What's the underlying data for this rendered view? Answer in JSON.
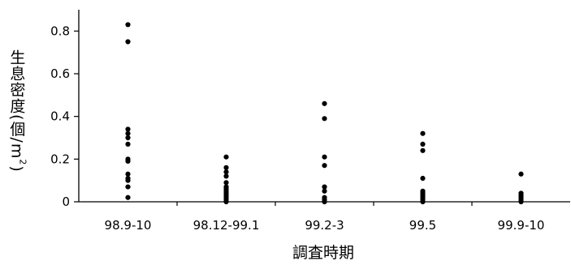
{
  "chart_data": {
    "type": "scatter",
    "xlabel": "調査時期",
    "ylabel": {
      "prefix": "生息密度(個/m",
      "superscript": "2",
      "suffix": ")"
    },
    "ylim": [
      0,
      0.9
    ],
    "yticks": [
      {
        "value": 0,
        "label": "0"
      },
      {
        "value": 0.2,
        "label": "0.2"
      },
      {
        "value": 0.4,
        "label": "0.4"
      },
      {
        "value": 0.6,
        "label": "0.6"
      },
      {
        "value": 0.8,
        "label": "0.8"
      }
    ],
    "categories": [
      "98.9-10",
      "98.12-99.1",
      "99.2-3",
      "99.5",
      "99.9-10"
    ],
    "grid": false,
    "series": [
      {
        "values": [
          [
            0.83,
            0.75,
            0.34,
            0.32,
            0.3,
            0.27,
            0.2,
            0.19,
            0.13,
            0.11,
            0.1,
            0.07,
            0.02
          ],
          [
            0.21,
            0.16,
            0.14,
            0.12,
            0.09,
            0.07,
            0.06,
            0.05,
            0.04,
            0.03,
            0.02,
            0.01,
            0.0
          ],
          [
            0.46,
            0.39,
            0.21,
            0.17,
            0.07,
            0.05,
            0.02,
            0.01,
            0.0
          ],
          [
            0.32,
            0.27,
            0.24,
            0.11,
            0.05,
            0.04,
            0.03,
            0.02,
            0.01,
            0.0
          ],
          [
            0.13,
            0.04,
            0.03,
            0.02,
            0.01,
            0.0
          ]
        ]
      }
    ]
  }
}
